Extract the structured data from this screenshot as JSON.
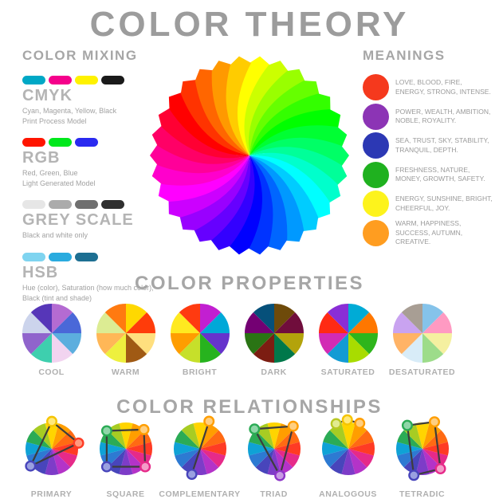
{
  "title": "COLOR THEORY",
  "mixing": {
    "heading": "COLOR MIXING",
    "groups": [
      {
        "name": "CMYK",
        "desc": "Cyan, Magenta, Yellow, Black\nPrint Process Model",
        "swatches": [
          "#00a8c6",
          "#f5008b",
          "#fff200",
          "#1a1a1a"
        ]
      },
      {
        "name": "RGB",
        "desc": "Red, Green, Blue\nLight Generated Model",
        "swatches": [
          "#ff1500",
          "#00e81c",
          "#2a2af0"
        ]
      },
      {
        "name": "GREY SCALE",
        "desc": "Black and white only",
        "swatches": [
          "#e6e6e6",
          "#ababab",
          "#6f6f6f",
          "#2f2f2f"
        ]
      },
      {
        "name": "HSB",
        "desc": "Hue (color), Saturation (how much color), Black (tint and shade)",
        "swatches": [
          "#7fd4f0",
          "#2aabdf",
          "#1d6f92"
        ]
      }
    ]
  },
  "meanings": {
    "heading": "MEANINGS",
    "items": [
      {
        "color": "#f5391d",
        "text": "LOVE, BLOOD, FIRE, ENERGY, STRONG, INTENSE."
      },
      {
        "color": "#8c34b5",
        "text": "POWER, WEALTH, AMBITION, NOBLE, ROYALITY."
      },
      {
        "color": "#2c38b4",
        "text": "SEA, TRUST, SKY, STABILITY, TRANQUIL, DEPTH."
      },
      {
        "color": "#1fb11f",
        "text": "FRESHNESS, NATURE, MONEY, GROWTH, SAFETY."
      },
      {
        "color": "#fdf31c",
        "text": "ENERGY, SUNSHINE, BRIGHT, CHEERFUL, JOY."
      },
      {
        "color": "#ff9d20",
        "text": "WARM, HAPPINESS, SUCCESS, AUTUMN, CREATIVE."
      }
    ]
  },
  "spiral": {
    "hue_start": 60,
    "hue_step": 12,
    "count": 30
  },
  "properties": {
    "heading": "COLOR PROPERTIES",
    "wheels": [
      {
        "label": "COOL",
        "colors": [
          "#b46bd2",
          "#4a68d8",
          "#5caede",
          "#f2d4f0",
          "#3ecfae",
          "#9064cc",
          "#ccd4ec",
          "#5636b8"
        ]
      },
      {
        "label": "WARM",
        "colors": [
          "#ffd800",
          "#ff3c0a",
          "#ffdf7e",
          "#a05a14",
          "#eef03e",
          "#ffb757",
          "#dcec93",
          "#ff7a10"
        ]
      },
      {
        "label": "BRIGHT",
        "colors": [
          "#c21fd1",
          "#00a8d8",
          "#6633cc",
          "#27b31e",
          "#c6e02a",
          "#ff9d00",
          "#ffe920",
          "#ff3a10"
        ]
      },
      {
        "label": "DARK",
        "colors": [
          "#6e4a0a",
          "#700d3c",
          "#b3a30b",
          "#00784a",
          "#7c1d12",
          "#2a7414",
          "#740073",
          "#06507a"
        ]
      },
      {
        "label": "SATURATED",
        "colors": [
          "#00abd6",
          "#ff7700",
          "#2eb51c",
          "#a8dc00",
          "#129bd4",
          "#d22bb4",
          "#ff2a14",
          "#8a2ed6"
        ]
      },
      {
        "label": "DESATURATED",
        "colors": [
          "#85c3ea",
          "#ff9ac2",
          "#f5f0a0",
          "#9ddc8a",
          "#d8ecf8",
          "#ffb366",
          "#c9a3f0",
          "#a89e94"
        ]
      }
    ]
  },
  "relationships": {
    "heading": "COLOR RELATIONSHIPS",
    "line_color": "#3d3d3d",
    "wheel_colors": [
      "#ffd400",
      "#ff9e00",
      "#ff6a13",
      "#ff3b24",
      "#e62a89",
      "#b433c8",
      "#7d3cc8",
      "#4845bb",
      "#2d7ad2",
      "#0fa2d6",
      "#2bab55",
      "#a7cc23"
    ],
    "wheels": [
      {
        "label": "PRIMARY",
        "closed": true,
        "nodes": [
          {
            "angle": 0,
            "r": 1.04,
            "ring": "#f5c400",
            "fill": "#ffe97a"
          },
          {
            "angle": 78,
            "r": 1.04,
            "ring": "#ff3b24",
            "fill": "#ff9a80"
          },
          {
            "angle": 231,
            "r": 1.04,
            "ring": "#4845bb",
            "fill": "#9aa0e0"
          }
        ]
      },
      {
        "label": "SQUARE",
        "closed": true,
        "nodes": [
          {
            "angle": 313,
            "r": 1.0,
            "ring": "#2bab55",
            "fill": "#8fd6a8"
          },
          {
            "angle": 43,
            "r": 1.0,
            "ring": "#ff9e00",
            "fill": "#ffcf80"
          },
          {
            "angle": 133,
            "r": 1.0,
            "ring": "#e62a89",
            "fill": "#f49cc8"
          },
          {
            "angle": 227,
            "r": 1.0,
            "ring": "#4845bb",
            "fill": "#9aa0e0"
          }
        ]
      },
      {
        "label": "COMPLEMENTARY",
        "closed": false,
        "nodes": [
          {
            "angle": 18,
            "r": 1.1,
            "ring": "#ff9e00",
            "fill": "#ffcf80"
          },
          {
            "angle": 198,
            "r": 1.02,
            "ring": "#4845bb",
            "fill": "#9aa0e0"
          }
        ]
      },
      {
        "label": "TRIAD",
        "closed": true,
        "nodes": [
          {
            "angle": 315,
            "r": 1.06,
            "ring": "#2bab55",
            "fill": "#8fd6a8"
          },
          {
            "angle": 40,
            "r": 1.12,
            "ring": "#ff9e00",
            "fill": "#ffcf80"
          },
          {
            "angle": 168,
            "r": 1.04,
            "ring": "#8d35c8",
            "fill": "#c89ae4"
          }
        ]
      },
      {
        "label": "ANALOGOUS",
        "closed": false,
        "nodes": [
          {
            "angle": 334,
            "r": 1.06,
            "ring": "#b9c825",
            "fill": "#e2eb90"
          },
          {
            "angle": 358,
            "r": 1.1,
            "ring": "#f5c400",
            "fill": "#ffe97a"
          },
          {
            "angle": 24,
            "r": 1.06,
            "ring": "#ff9e00",
            "fill": "#ffcf80"
          }
        ]
      },
      {
        "label": "TETRADIC",
        "closed": true,
        "nodes": [
          {
            "angle": 327,
            "r": 1.06,
            "ring": "#2bab55",
            "fill": "#8fd6a8"
          },
          {
            "angle": 24,
            "r": 1.12,
            "ring": "#ff9e00",
            "fill": "#ffcf80"
          },
          {
            "angle": 138,
            "r": 1.02,
            "ring": "#e62a89",
            "fill": "#f49cc8"
          },
          {
            "angle": 198,
            "r": 1.06,
            "ring": "#4845bb",
            "fill": "#9aa0e0"
          }
        ]
      }
    ]
  }
}
